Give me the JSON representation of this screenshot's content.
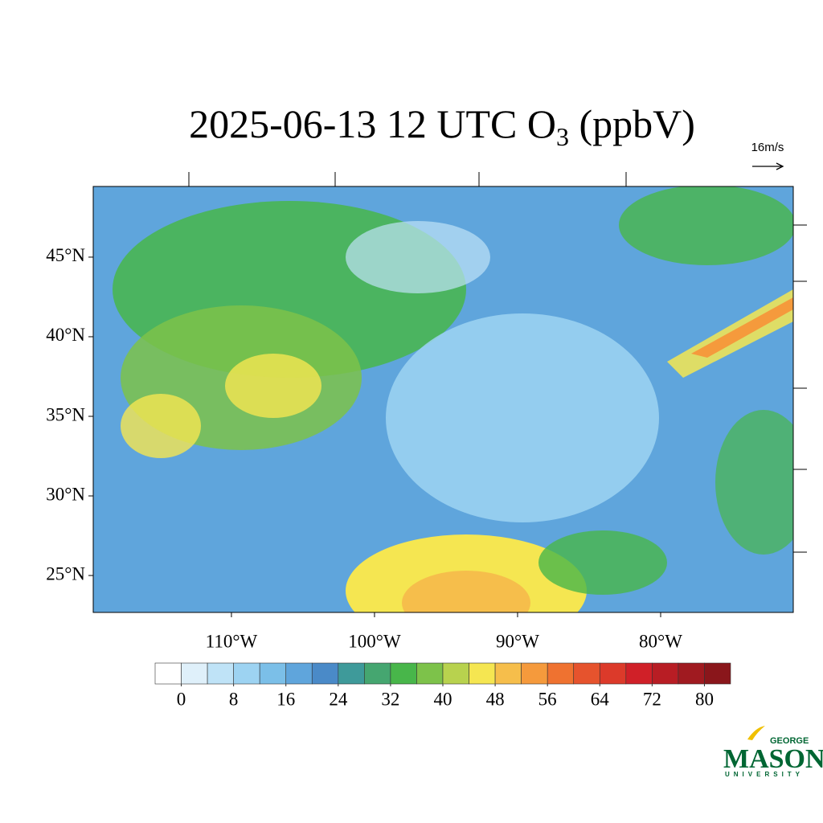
{
  "title": {
    "main": "2025-06-13 12 UTC O",
    "subscript": "3",
    "suffix": " (ppbV)"
  },
  "map": {
    "lonlim": [
      -119.66,
      -70.73
    ],
    "latlim": [
      22.68,
      49.44
    ],
    "lon_ticks": [
      {
        "value": -110,
        "label": "110°W"
      },
      {
        "value": -100,
        "label": "100°W"
      },
      {
        "value": -90,
        "label": "90°W"
      },
      {
        "value": -80,
        "label": "80°W"
      }
    ],
    "lat_ticks": [
      {
        "value": 45,
        "label": "45°N"
      },
      {
        "value": 40,
        "label": "40°N"
      },
      {
        "value": 35,
        "label": "35°N"
      },
      {
        "value": 30,
        "label": "30°N"
      },
      {
        "value": 25,
        "label": "25°N"
      }
    ]
  },
  "vector_reference": "16m/s",
  "colorbar": {
    "lim": [
      -4,
      84
    ],
    "ticks": [
      0,
      8,
      16,
      24,
      32,
      40,
      48,
      56,
      64,
      72,
      80
    ],
    "colors": [
      "#ffffff",
      "#dff0fa",
      "#bfe3f7",
      "#9dd3f2",
      "#7bbfe8",
      "#5fa5dc",
      "#4a8ac8",
      "#3e9a9a",
      "#45a670",
      "#48b64a",
      "#7dc24a",
      "#b8d24e",
      "#f5e651",
      "#f6be4b",
      "#f59a3c",
      "#ef7230",
      "#e6532d",
      "#dc3a2a",
      "#d02028",
      "#b81d24",
      "#a01a20",
      "#8a161b"
    ]
  },
  "logo": {
    "top": "GEORGE",
    "main": "MASON",
    "bottom": "UNIVERSITY"
  }
}
